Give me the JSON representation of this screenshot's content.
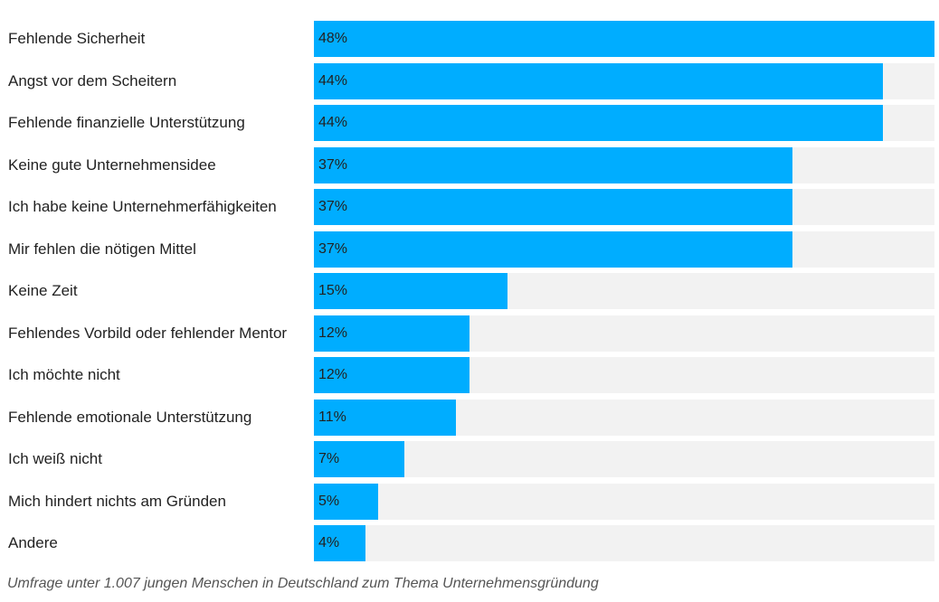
{
  "chart_data": {
    "type": "bar",
    "orientation": "horizontal",
    "categories": [
      "Fehlende Sicherheit",
      "Angst vor dem Scheitern",
      "Fehlende finanzielle Unterstützung",
      "Keine gute Unternehmensidee",
      "Ich habe keine Unternehmerfähigkeiten",
      "Mir fehlen die nötigen Mittel",
      "Keine Zeit",
      "Fehlendes Vorbild oder fehlender Mentor",
      "Ich möchte nicht",
      "Fehlende emotionale Unterstützung",
      "Ich weiß nicht",
      "Mich hindert nichts am Gründen",
      "Andere"
    ],
    "values": [
      48,
      44,
      44,
      37,
      37,
      37,
      15,
      12,
      12,
      11,
      7,
      5,
      4
    ],
    "value_labels": [
      "48%",
      "44%",
      "44%",
      "37%",
      "37%",
      "37%",
      "15%",
      "12%",
      "12%",
      "11%",
      "7%",
      "5%",
      "4%"
    ],
    "unit": "%",
    "xlim": [
      0,
      48
    ],
    "title": "",
    "xlabel": "",
    "ylabel": "",
    "grid": false,
    "colors": {
      "bar": "#00adff",
      "track": "#f2f2f2"
    }
  },
  "caption": "Umfrage unter 1.007 jungen Menschen in Deutschland zum Thema Unternehmensgründung"
}
